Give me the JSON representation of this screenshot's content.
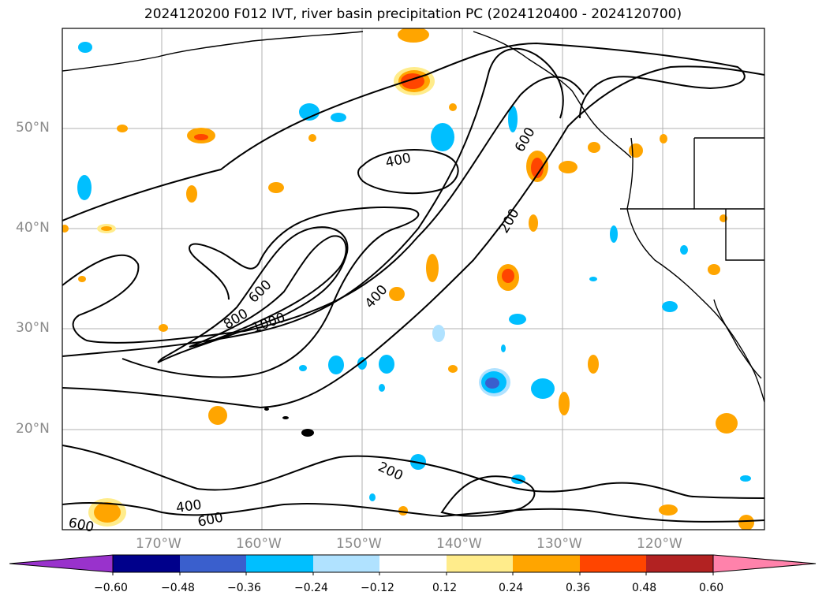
{
  "title": "2024120200 F012 IVT, river basin precipitation PC (2024120400 - 2024120700)",
  "lat_labels": [
    "50°N",
    "40°N",
    "30°N",
    "20°N"
  ],
  "lon_labels": [
    "170°W",
    "160°W",
    "150°W",
    "140°W",
    "130°W",
    "120°W"
  ],
  "contour_labels": [
    "400",
    "600",
    "200",
    "800",
    "600",
    "1000",
    "400",
    "200",
    "400",
    "600",
    "600"
  ],
  "colorbar": {
    "colors": [
      "#9932cc",
      "#00008b",
      "#3a5fcd",
      "#00bfff",
      "#b0e2ff",
      "#ffffff",
      "#ffec8b",
      "#ffa500",
      "#ff4500",
      "#b22222",
      "#ff82ab"
    ],
    "ticks": [
      "−0.60",
      "−0.48",
      "−0.36",
      "−0.24",
      "−0.12",
      "0.12",
      "0.24",
      "0.36",
      "0.48",
      "0.60"
    ]
  }
}
